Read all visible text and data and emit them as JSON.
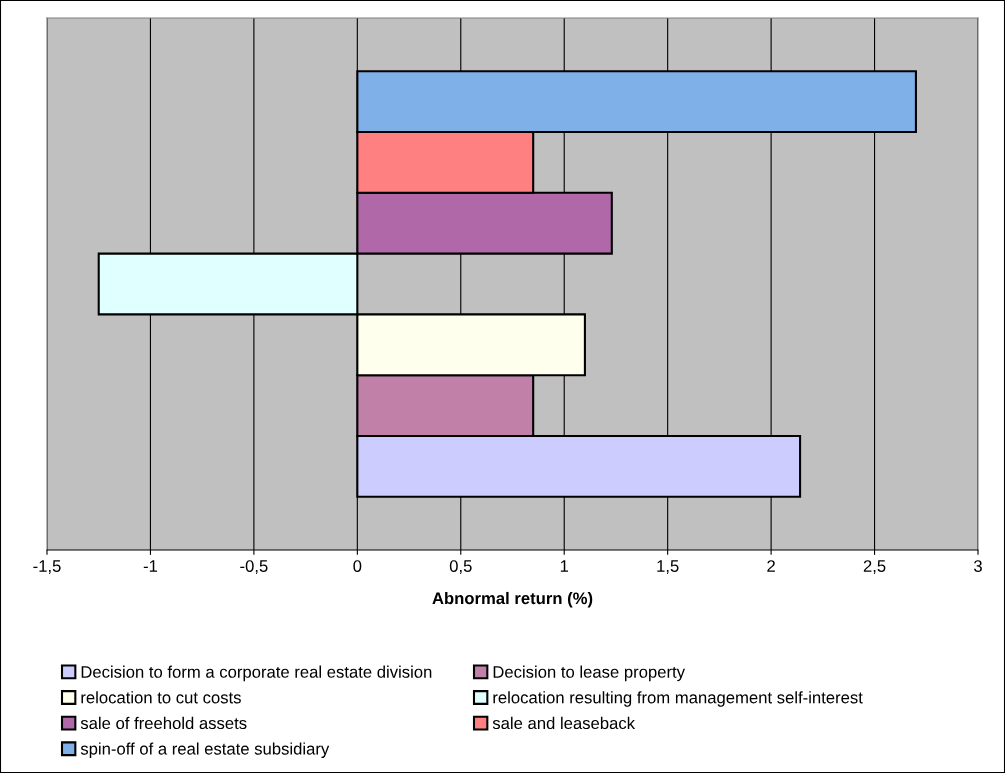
{
  "chart_data": {
    "type": "bar",
    "orientation": "horizontal",
    "xlabel": "Abnormal return (%)",
    "categories": [
      null
    ],
    "series": [
      {
        "name": "Decision to form a corporate real estate division",
        "color": "#ccccff",
        "values": [
          2.14
        ]
      },
      {
        "name": "Decision to lease property",
        "color": "#c080a8",
        "values": [
          0.85
        ]
      },
      {
        "name": "relocation to cut costs",
        "color": "#ffffee",
        "values": [
          1.1
        ]
      },
      {
        "name": "relocation resulting from management self-interest",
        "color": "#e0ffff",
        "values": [
          -1.25
        ]
      },
      {
        "name": "sale of freehold assets",
        "color": "#b068a8",
        "values": [
          1.23
        ]
      },
      {
        "name": "sale and leaseback",
        "color": "#ff8080",
        "values": [
          0.85
        ]
      },
      {
        "name": "spin-off of a real estate subsidiary",
        "color": "#80b0e8",
        "values": [
          2.7
        ]
      }
    ],
    "xlim": [
      -1.5,
      3
    ],
    "xticks": [
      {
        "value": -1.5,
        "label": "-1,5"
      },
      -1,
      {
        "value": -0.5,
        "label": "-0,5"
      },
      0,
      {
        "value": 0.5,
        "label": "0,5"
      },
      1,
      {
        "value": 1.5,
        "label": "1,5"
      },
      2,
      {
        "value": 2.5,
        "label": "2,5"
      },
      3
    ],
    "grid": "x",
    "legend": "bottom"
  }
}
